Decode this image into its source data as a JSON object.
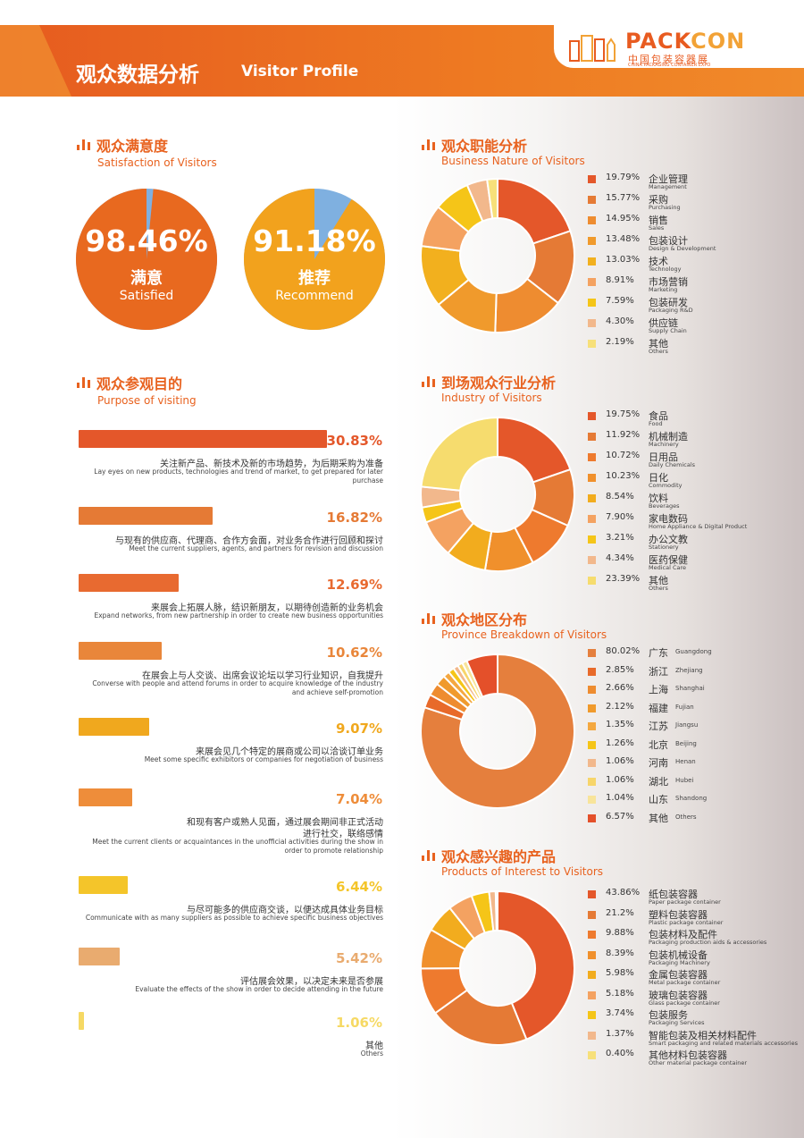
{
  "header": {
    "title_cn": "观众数据分析",
    "title_en": "Visitor Profile"
  },
  "logo": {
    "pack": "PACK",
    "con": "CON",
    "cn": "中国包装容器展",
    "en": "CHINA PACKAGING CONTAINER EXPO"
  },
  "colors": {
    "accent": "#e8621f",
    "dark_orange": "#e35a24",
    "orange": "#e57a35",
    "amber": "#f0a020",
    "light_blue": "#7fb0e0"
  },
  "satisfaction": {
    "title_cn": "观众满意度",
    "title_en": "Satisfaction of Visitors",
    "items": [
      {
        "pct": "98.46%",
        "value": 98.46,
        "cn": "满意",
        "en": "Satisfied",
        "color": "#e8691f"
      },
      {
        "pct": "91.18%",
        "value": 91.18,
        "cn": "推荐",
        "en": "Recommend",
        "color": "#f2a21d"
      }
    ]
  },
  "purpose": {
    "title_cn": "观众参观目的",
    "title_en": "Purpose of visiting",
    "items": [
      {
        "value": 30.83,
        "label": "30.83%",
        "cn": "关注新产品、新技术及新的市场趋势，为后期采购为准备",
        "en": [
          "Lay eyes on new products, technologies and trend of market, to get prepared for later",
          "purchase"
        ],
        "color": "#e4572a"
      },
      {
        "value": 16.82,
        "label": "16.82%",
        "cn": "与现有的供应商、代理商、合作方会面，对业务合作进行回顾和探讨",
        "en": [
          "Meet the current suppliers, agents, and partners for revision and discussion"
        ],
        "color": "#e57a35"
      },
      {
        "value": 12.69,
        "label": "12.69%",
        "cn": "来展会上拓展人脉，结识新朋友，以期待创造新的业务机会",
        "en": [
          "Expand networks, from new partnership in order to create new business opportunities"
        ],
        "color": "#e86a30"
      },
      {
        "value": 10.62,
        "label": "10.62%",
        "cn": "在展会上与人交谈、出席会议论坛以学习行业知识，自我提升",
        "en": [
          "Converse with people and attend forums in order to acquire knowledge of the industry",
          "and achieve self-promotion"
        ],
        "color": "#e9863a"
      },
      {
        "value": 9.07,
        "label": "9.07%",
        "cn": "来展会见几个特定的展商或公司以洽谈订单业务",
        "en": [
          "Meet some specific exhibitors or companies for negotiation of business"
        ],
        "color": "#f0a81e"
      },
      {
        "value": 7.04,
        "label": "7.04%",
        "cn": "和现有客户或熟人见面，通过展会期间非正式活动",
        "cn2": "进行社交，联络感情",
        "en": [
          "Meet the current clients or acquaintances in the unofficial activities during the show in",
          "order to promote relationship"
        ],
        "color": "#ee8d3a"
      },
      {
        "value": 6.44,
        "label": "6.44%",
        "cn": "与尽可能多的供应商交谈，以便达成具体业务目标",
        "en": [
          "Communicate with as many suppliers as possible to achieve specific business objectives"
        ],
        "color": "#f4c52a"
      },
      {
        "value": 5.42,
        "label": "5.42%",
        "cn": "评估展会效果，以决定未来是否参展",
        "en": [
          "Evaluate the effects of the show in order to decide attending in the future"
        ],
        "color": "#e9ab6f"
      },
      {
        "value": 1.06,
        "label": "1.06%",
        "cn": "其他",
        "en": [
          "Others"
        ],
        "color": "#f6d964"
      }
    ]
  },
  "business": {
    "title_cn": "观众职能分析",
    "title_en": "Business Nature of Visitors",
    "items": [
      {
        "value": 19.79,
        "label": "19.79%",
        "cn": "企业管理",
        "en": "Management",
        "color": "#e4572a"
      },
      {
        "value": 15.77,
        "label": "15.77%",
        "cn": "采购",
        "en": "Purchasing",
        "color": "#e57a35"
      },
      {
        "value": 14.95,
        "label": "14.95%",
        "cn": "销售",
        "en": "Sales",
        "color": "#ee8c30"
      },
      {
        "value": 13.48,
        "label": "13.48%",
        "cn": "包装设计",
        "en": "Design & Development",
        "color": "#f09a2c"
      },
      {
        "value": 13.03,
        "label": "13.03%",
        "cn": "技术",
        "en": "Technology",
        "color": "#f2b01e"
      },
      {
        "value": 8.91,
        "label": "8.91%",
        "cn": "市场营销",
        "en": "Marketing",
        "color": "#f4a261"
      },
      {
        "value": 7.59,
        "label": "7.59%",
        "cn": "包装研发",
        "en": "Packaging R&D",
        "color": "#f5c518"
      },
      {
        "value": 4.3,
        "label": "4.30%",
        "cn": "供应链",
        "en": "Supply Chain",
        "color": "#f2b88c"
      },
      {
        "value": 2.19,
        "label": "2.19%",
        "cn": "其他",
        "en": "Others",
        "color": "#f7e07a"
      }
    ]
  },
  "industry": {
    "title_cn": "到场观众行业分析",
    "title_en": "Industry of Visitors",
    "items": [
      {
        "value": 19.75,
        "label": "19.75%",
        "cn": "食品",
        "en": "Food",
        "color": "#e4572a"
      },
      {
        "value": 11.92,
        "label": "11.92%",
        "cn": "机械制造",
        "en": "Machinery",
        "color": "#e57a35"
      },
      {
        "value": 10.72,
        "label": "10.72%",
        "cn": "日用品",
        "en": "Daily Chemicals",
        "color": "#ee7a2e"
      },
      {
        "value": 10.23,
        "label": "10.23%",
        "cn": "日化",
        "en": "Commodity",
        "color": "#f0902c"
      },
      {
        "value": 8.54,
        "label": "8.54%",
        "cn": "饮料",
        "en": "Beverages",
        "color": "#f2ac1e"
      },
      {
        "value": 7.9,
        "label": "7.90%",
        "cn": "家电数码",
        "en": "Home Appliance & Digital Product",
        "color": "#f4a261"
      },
      {
        "value": 3.21,
        "label": "3.21%",
        "cn": "办公文教",
        "en": "Stationery",
        "color": "#f5c518"
      },
      {
        "value": 4.34,
        "label": "4.34%",
        "cn": "医药保健",
        "en": "Medical Care",
        "color": "#f2b88c"
      },
      {
        "value": 23.39,
        "label": "23.39%",
        "cn": "其他",
        "en": "Others",
        "color": "#f6dc6e"
      }
    ]
  },
  "province": {
    "title_cn": "观众地区分布",
    "title_en": "Province Breakdown of Visitors",
    "items": [
      {
        "value": 80.02,
        "label": "80.02%",
        "cn": "广东",
        "en": "Guangdong",
        "color": "#e57f3d"
      },
      {
        "value": 2.85,
        "label": "2.85%",
        "cn": "浙江",
        "en": "Zhejiang",
        "color": "#e86a2a"
      },
      {
        "value": 2.66,
        "label": "2.66%",
        "cn": "上海",
        "en": "Shanghai",
        "color": "#ee8c30"
      },
      {
        "value": 2.12,
        "label": "2.12%",
        "cn": "福建",
        "en": "Fujian",
        "color": "#f09a2c"
      },
      {
        "value": 1.35,
        "label": "1.35%",
        "cn": "江苏",
        "en": "Jiangsu",
        "color": "#f4a840"
      },
      {
        "value": 1.26,
        "label": "1.26%",
        "cn": "北京",
        "en": "Beijing",
        "color": "#f5c518"
      },
      {
        "value": 1.06,
        "label": "1.06%",
        "cn": "河南",
        "en": "Henan",
        "color": "#f2b88c"
      },
      {
        "value": 1.06,
        "label": "1.06%",
        "cn": "湖北",
        "en": "Hubei",
        "color": "#f7d56a"
      },
      {
        "value": 1.04,
        "label": "1.04%",
        "cn": "山东",
        "en": "Shandong",
        "color": "#f8e49a"
      },
      {
        "value": 6.57,
        "label": "6.57%",
        "cn": "其他",
        "en": "Others",
        "color": "#e4502a"
      }
    ]
  },
  "products": {
    "title_cn": "观众感兴趣的产品",
    "title_en": "Products of Interest to Visitors",
    "items": [
      {
        "value": 43.86,
        "label": "43.86%",
        "cn": "纸包装容器",
        "en": "Paper package container",
        "color": "#e4572a"
      },
      {
        "value": 21.2,
        "label": "21.2%",
        "cn": "塑料包装容器",
        "en": "Plastic package container",
        "color": "#e57a35"
      },
      {
        "value": 9.88,
        "label": "9.88%",
        "cn": "包装材料及配件",
        "en": "Packaging production aids & accessories",
        "color": "#ee7a2e"
      },
      {
        "value": 8.39,
        "label": "8.39%",
        "cn": "包装机械设备",
        "en": "Packaging Machinery",
        "color": "#f0902c"
      },
      {
        "value": 5.98,
        "label": "5.98%",
        "cn": "金属包装容器",
        "en": "Metal package container",
        "color": "#f2ac1e"
      },
      {
        "value": 5.18,
        "label": "5.18%",
        "cn": "玻璃包装容器",
        "en": "Glass package container",
        "color": "#f4a261"
      },
      {
        "value": 3.74,
        "label": "3.74%",
        "cn": "包装服务",
        "en": "Packaging Services",
        "color": "#f5c518"
      },
      {
        "value": 1.37,
        "label": "1.37%",
        "cn": "智能包装及相关材料配件",
        "en": "Smart packaging and related materials accessories",
        "color": "#f2b88c"
      },
      {
        "value": 0.4,
        "label": "0.40%",
        "cn": "其他材料包装容器",
        "en": "Other material package container",
        "color": "#f7e07a"
      }
    ]
  },
  "chart_data": [
    {
      "type": "pie",
      "title": "观众满意度 Satisfaction of Visitors",
      "labels": [
        "满意 Satisfied",
        "推荐 Recommend"
      ],
      "values": [
        98.46,
        91.18
      ]
    },
    {
      "type": "bar",
      "title": "观众参观目的 Purpose of visiting",
      "categories": [
        "关注新产品、新技术及新的市场趋势，为后期采购为准备",
        "与现有的供应商、代理商、合作方会面，对业务合作进行回顾和探讨",
        "来展会上拓展人脉，结识新朋友，以期待创造新的业务机会",
        "在展会上与人交谈、出席会议论坛以学习行业知识，自我提升",
        "来展会见几个特定的展商或公司以洽谈订单业务",
        "和现有客户或熟人见面，通过展会期间非正式活动进行社交，联络感情",
        "与尽可能多的供应商交谈，以便达成具体业务目标",
        "评估展会效果，以决定未来是否参展",
        "其他"
      ],
      "values": [
        30.83,
        16.82,
        12.69,
        10.62,
        9.07,
        7.04,
        6.44,
        5.42,
        1.06
      ]
    },
    {
      "type": "pie",
      "title": "观众职能分析 Business Nature of Visitors",
      "labels": [
        "企业管理",
        "采购",
        "销售",
        "包装设计",
        "技术",
        "市场营销",
        "包装研发",
        "供应链",
        "其他"
      ],
      "values": [
        19.79,
        15.77,
        14.95,
        13.48,
        13.03,
        8.91,
        7.59,
        4.3,
        2.19
      ]
    },
    {
      "type": "pie",
      "title": "到场观众行业分析 Industry of Visitors",
      "labels": [
        "食品",
        "机械制造",
        "日用品",
        "日化",
        "饮料",
        "家电数码",
        "办公文教",
        "医药保健",
        "其他"
      ],
      "values": [
        19.75,
        11.92,
        10.72,
        10.23,
        8.54,
        7.9,
        3.21,
        4.34,
        23.39
      ]
    },
    {
      "type": "pie",
      "title": "观众地区分布 Province Breakdown of Visitors",
      "labels": [
        "广东",
        "浙江",
        "上海",
        "福建",
        "江苏",
        "北京",
        "河南",
        "湖北",
        "山东",
        "其他"
      ],
      "values": [
        80.02,
        2.85,
        2.66,
        2.12,
        1.35,
        1.26,
        1.06,
        1.06,
        1.04,
        6.57
      ]
    },
    {
      "type": "pie",
      "title": "观众感兴趣的产品 Products of Interest to Visitors",
      "labels": [
        "纸包装容器",
        "塑料包装容器",
        "包装材料及配件",
        "包装机械设备",
        "金属包装容器",
        "玻璃包装容器",
        "包装服务",
        "智能包装及相关材料配件",
        "其他材料包装容器"
      ],
      "values": [
        43.86,
        21.2,
        9.88,
        8.39,
        5.98,
        5.18,
        3.74,
        1.37,
        0.4
      ]
    }
  ]
}
